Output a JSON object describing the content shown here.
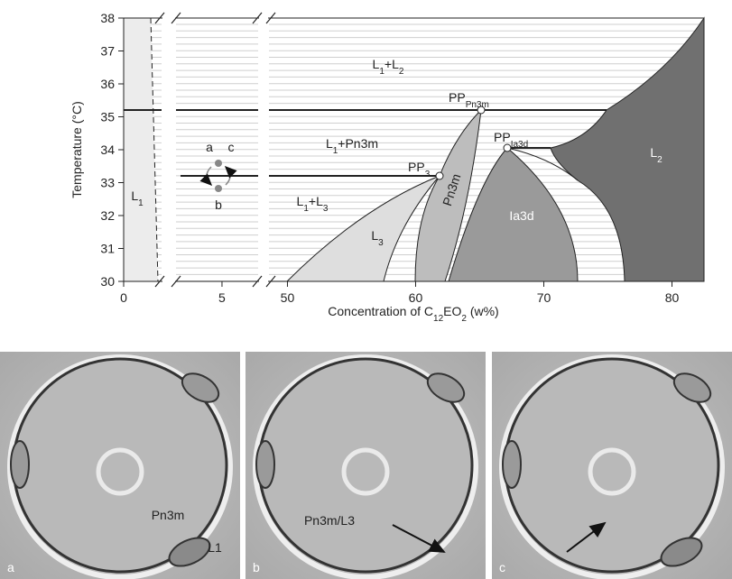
{
  "phase_diagram": {
    "ylabel": "Temperature (°C)",
    "xlabel": [
      {
        "t": "Concentration of C"
      },
      {
        "t": "12",
        "sub": true
      },
      {
        "t": "EO"
      },
      {
        "t": "2",
        "sub": true
      },
      {
        "t": " (w%)"
      }
    ],
    "ylim": [
      30,
      38
    ],
    "yticks": [
      30,
      31,
      32,
      33,
      34,
      35,
      36,
      37,
      38
    ],
    "xsegments": [
      [
        0,
        6.7
      ],
      [
        48.7,
        82.5
      ]
    ],
    "xticks": [
      0,
      5,
      50,
      60,
      70,
      80
    ],
    "regions": [
      {
        "label": [
          {
            "t": "L"
          },
          {
            "t": "1",
            "sub": true
          },
          {
            "t": "+L"
          },
          {
            "t": "2",
            "sub": true
          }
        ]
      },
      {
        "label": [
          {
            "t": "PP"
          },
          {
            "t": "Pn3m",
            "sub": true
          }
        ]
      },
      {
        "label": [
          {
            "t": "L"
          },
          {
            "t": "1",
            "sub": true
          },
          {
            "t": "+Pn3m"
          }
        ]
      },
      {
        "label": [
          {
            "t": "PP"
          },
          {
            "t": "Ia3d",
            "sub": true
          }
        ]
      },
      {
        "label": [
          {
            "t": "L"
          },
          {
            "t": "2",
            "sub": true
          }
        ]
      },
      {
        "label": [
          {
            "t": "PP"
          },
          {
            "t": "3",
            "sub": true
          }
        ]
      },
      {
        "label": [
          {
            "t": "L"
          },
          {
            "t": "1",
            "sub": true
          }
        ]
      },
      {
        "label": [
          {
            "t": "L"
          },
          {
            "t": "1",
            "sub": true
          },
          {
            "t": "+L"
          },
          {
            "t": "3",
            "sub": true
          }
        ]
      },
      {
        "label": [
          {
            "t": "Pn3m"
          }
        ]
      },
      {
        "label": [
          {
            "t": "Ia3d"
          }
        ]
      },
      {
        "label": [
          {
            "t": "L"
          },
          {
            "t": "3",
            "sub": true
          }
        ]
      }
    ],
    "sample_points": [
      "a",
      "c",
      "b"
    ]
  },
  "micrographs": [
    {
      "panel": "a",
      "labels": [
        "Pn3m",
        "L1"
      ]
    },
    {
      "panel": "b",
      "labels": [
        "Pn3m/L3"
      ]
    },
    {
      "panel": "c"
    }
  ]
}
